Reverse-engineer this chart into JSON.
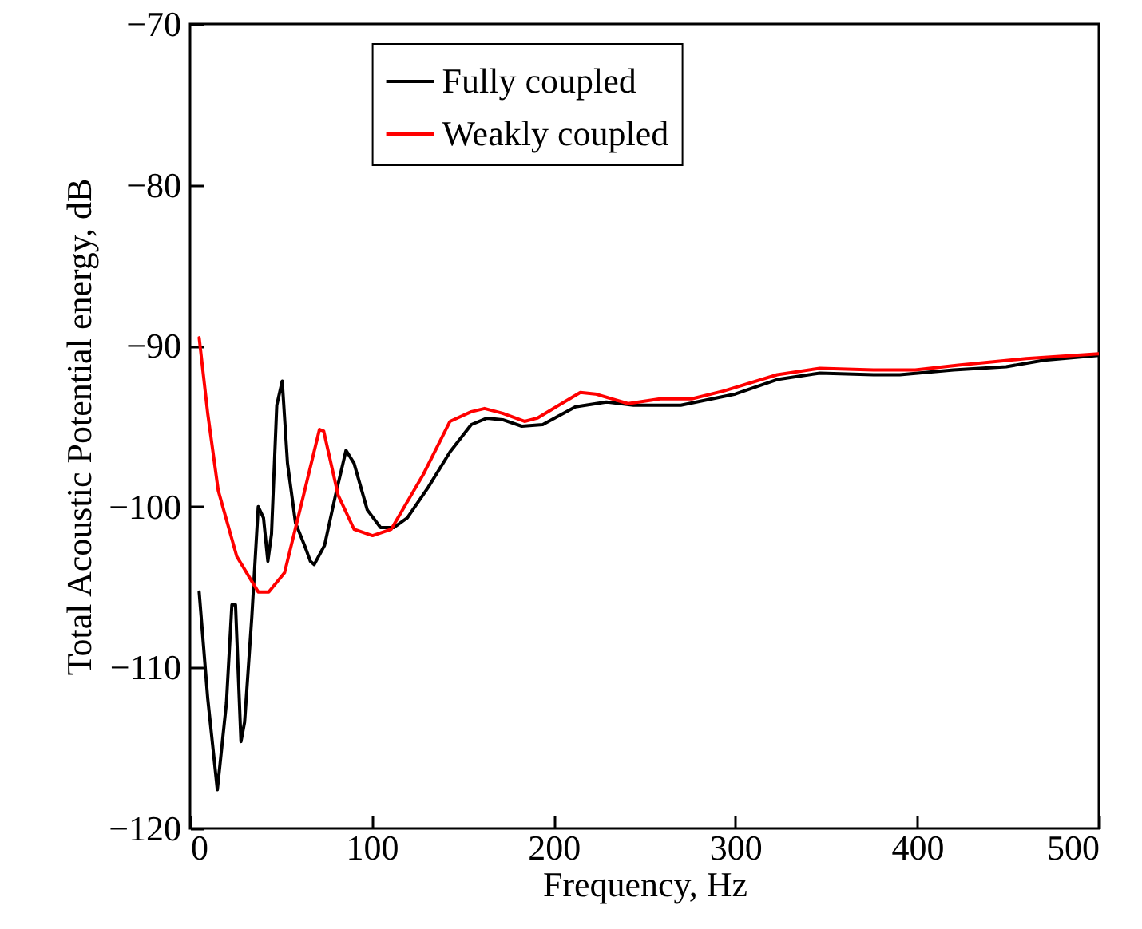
{
  "chart_data": {
    "type": "line",
    "xlabel": "Frequency, Hz",
    "ylabel": "Total Acoustic Potential energy, dB",
    "xlim": [
      0,
      500
    ],
    "ylim": [
      -120,
      -70
    ],
    "xticks": [
      0,
      100,
      200,
      300,
      400,
      500
    ],
    "yticks": [
      -120,
      -110,
      -100,
      -90,
      -80,
      -70
    ],
    "grid": false,
    "legend": "top",
    "line_style": "solid",
    "series": [
      {
        "name": "Fully coupled",
        "color": "#000000",
        "x": [
          5,
          9.7,
          15,
          20,
          23,
          25,
          28,
          30,
          34,
          37.5,
          40.4,
          42.8,
          44.8,
          47.7,
          50.7,
          53.6,
          58,
          63.3,
          66.2,
          68.3,
          74,
          80,
          85.8,
          90.2,
          97.5,
          104.8,
          112,
          119.5,
          131,
          143,
          154.7,
          163.4,
          172,
          182.5,
          194,
          212,
          229,
          244,
          270,
          300,
          323,
          346.5,
          376,
          390.5,
          420,
          449,
          470,
          500
        ],
        "values": [
          -105.3,
          -111.9,
          -117.6,
          -112.2,
          -106.1,
          -106.1,
          -114.6,
          -113.4,
          -106.8,
          -100,
          -100.7,
          -103.4,
          -101.7,
          -93.7,
          -92.2,
          -97.3,
          -101,
          -102.5,
          -103.4,
          -103.6,
          -102.4,
          -99.3,
          -96.5,
          -97.3,
          -100.2,
          -101.3,
          -101.3,
          -100.7,
          -98.8,
          -96.6,
          -94.9,
          -94.5,
          -94.6,
          -95,
          -94.9,
          -93.8,
          -93.5,
          -93.7,
          -93.7,
          -93,
          -92.1,
          -91.7,
          -91.8,
          -91.8,
          -91.5,
          -91.3,
          -90.9,
          -90.6
        ]
      },
      {
        "name": "Weakly coupled",
        "color": "#ff0000",
        "x": [
          5,
          9.7,
          15.5,
          25.7,
          37.5,
          43.3,
          52,
          62.4,
          71.2,
          73.5,
          81.5,
          90.2,
          100.4,
          110.7,
          128.3,
          143,
          154.7,
          162,
          172,
          184,
          191,
          214.7,
          223,
          241,
          258.6,
          276,
          294,
          323,
          346.5,
          376,
          399,
          422.7,
          460,
          500
        ],
        "values": [
          -89.5,
          -94.2,
          -99,
          -103.1,
          -105.3,
          -105.3,
          -104.1,
          -99.3,
          -95.2,
          -95.3,
          -99.3,
          -101.4,
          -101.8,
          -101.4,
          -98,
          -94.7,
          -94.1,
          -93.9,
          -94.2,
          -94.7,
          -94.5,
          -92.9,
          -93,
          -93.6,
          -93.3,
          -93.3,
          -92.8,
          -91.8,
          -91.4,
          -91.5,
          -91.5,
          -91.2,
          -90.8,
          -90.5
        ]
      }
    ]
  }
}
